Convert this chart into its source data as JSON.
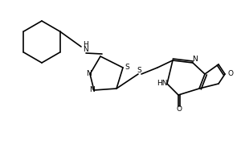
{
  "bg": "#ffffff",
  "lc": "#000000",
  "lw": 1.2,
  "atoms": {
    "N_label": "N",
    "S_label": "S",
    "O_label": "O",
    "H_label": "H",
    "HN_label": "HN"
  }
}
